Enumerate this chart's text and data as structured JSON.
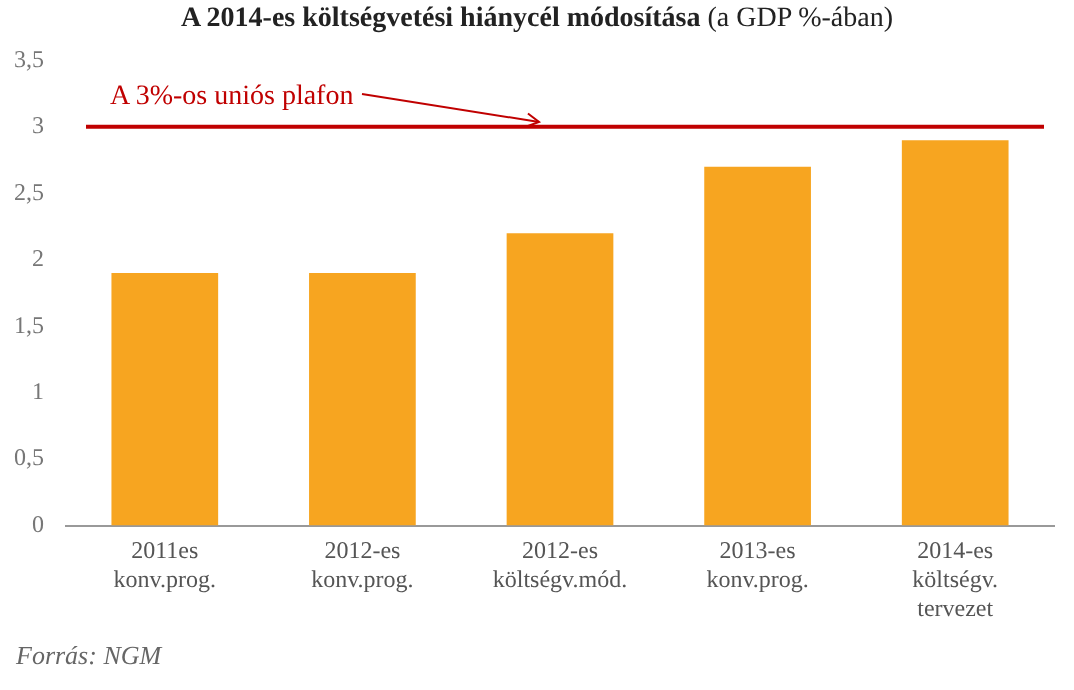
{
  "chart_data": {
    "type": "bar",
    "title": "A 2014-es költségvetési hiánycél módosítása",
    "subtitle": "(a GDP %-ában)",
    "categories": [
      "2011es konv.prog.",
      "2012-es konv.prog.",
      "2012-es költségv.mód.",
      "2013-es konv.prog.",
      "2014-es költségv. tervezet"
    ],
    "values": [
      1.9,
      1.9,
      2.2,
      2.7,
      2.9
    ],
    "color": "#f7a520",
    "ylim": [
      0,
      3.5
    ],
    "yticks": [
      0,
      {
        "value": 0.5,
        "label": "0,5"
      },
      1,
      {
        "value": 1.5,
        "label": "1,5"
      },
      2,
      {
        "value": 2.5,
        "label": "2,5"
      },
      3,
      {
        "value": 3.5,
        "label": "3,5"
      }
    ],
    "grid": false,
    "legend": false,
    "ref_lines": [
      {
        "axis": "y",
        "value": 3,
        "label": "A 3%-os uniós plafon",
        "color": "#c00000"
      }
    ],
    "annotations": [
      "Forrás: NGM"
    ]
  }
}
